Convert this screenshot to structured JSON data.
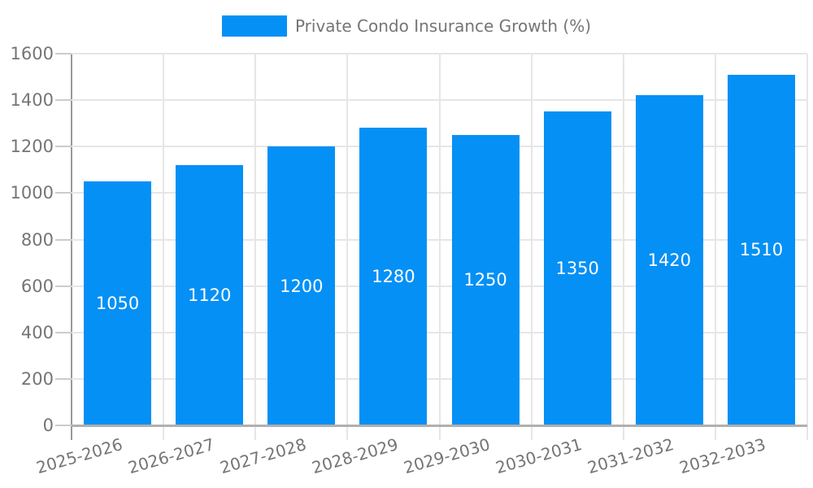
{
  "chart_data": {
    "type": "bar",
    "legend_label": "Private Condo Insurance Growth (%)",
    "categories": [
      "2025-2026",
      "2026-2027",
      "2027-2028",
      "2028-2029",
      "2029-2030",
      "2030-2031",
      "2031-2032",
      "2032-2033"
    ],
    "values": [
      1050,
      1120,
      1200,
      1280,
      1250,
      1350,
      1420,
      1510
    ],
    "value_labels": [
      "1050",
      "1120",
      "1200",
      "1280",
      "1250",
      "1350",
      "1420",
      "1510"
    ],
    "ylim": [
      0,
      1600
    ],
    "ytick_interval": 200,
    "ytick_labels": [
      "0",
      "200",
      "400",
      "600",
      "800",
      "1000",
      "1200",
      "1400",
      "1600"
    ],
    "grid": true,
    "legend_position": "top",
    "colors": {
      "bar": "#0590f5",
      "bar_value_text": "#ffffff",
      "axis_text": "#757575",
      "gridline": "#e6e6e6",
      "x_axis_line": "#b0b0b0",
      "y_axis_line": "#999999",
      "y_tick": "#cccccc",
      "background": "#ffffff"
    }
  }
}
